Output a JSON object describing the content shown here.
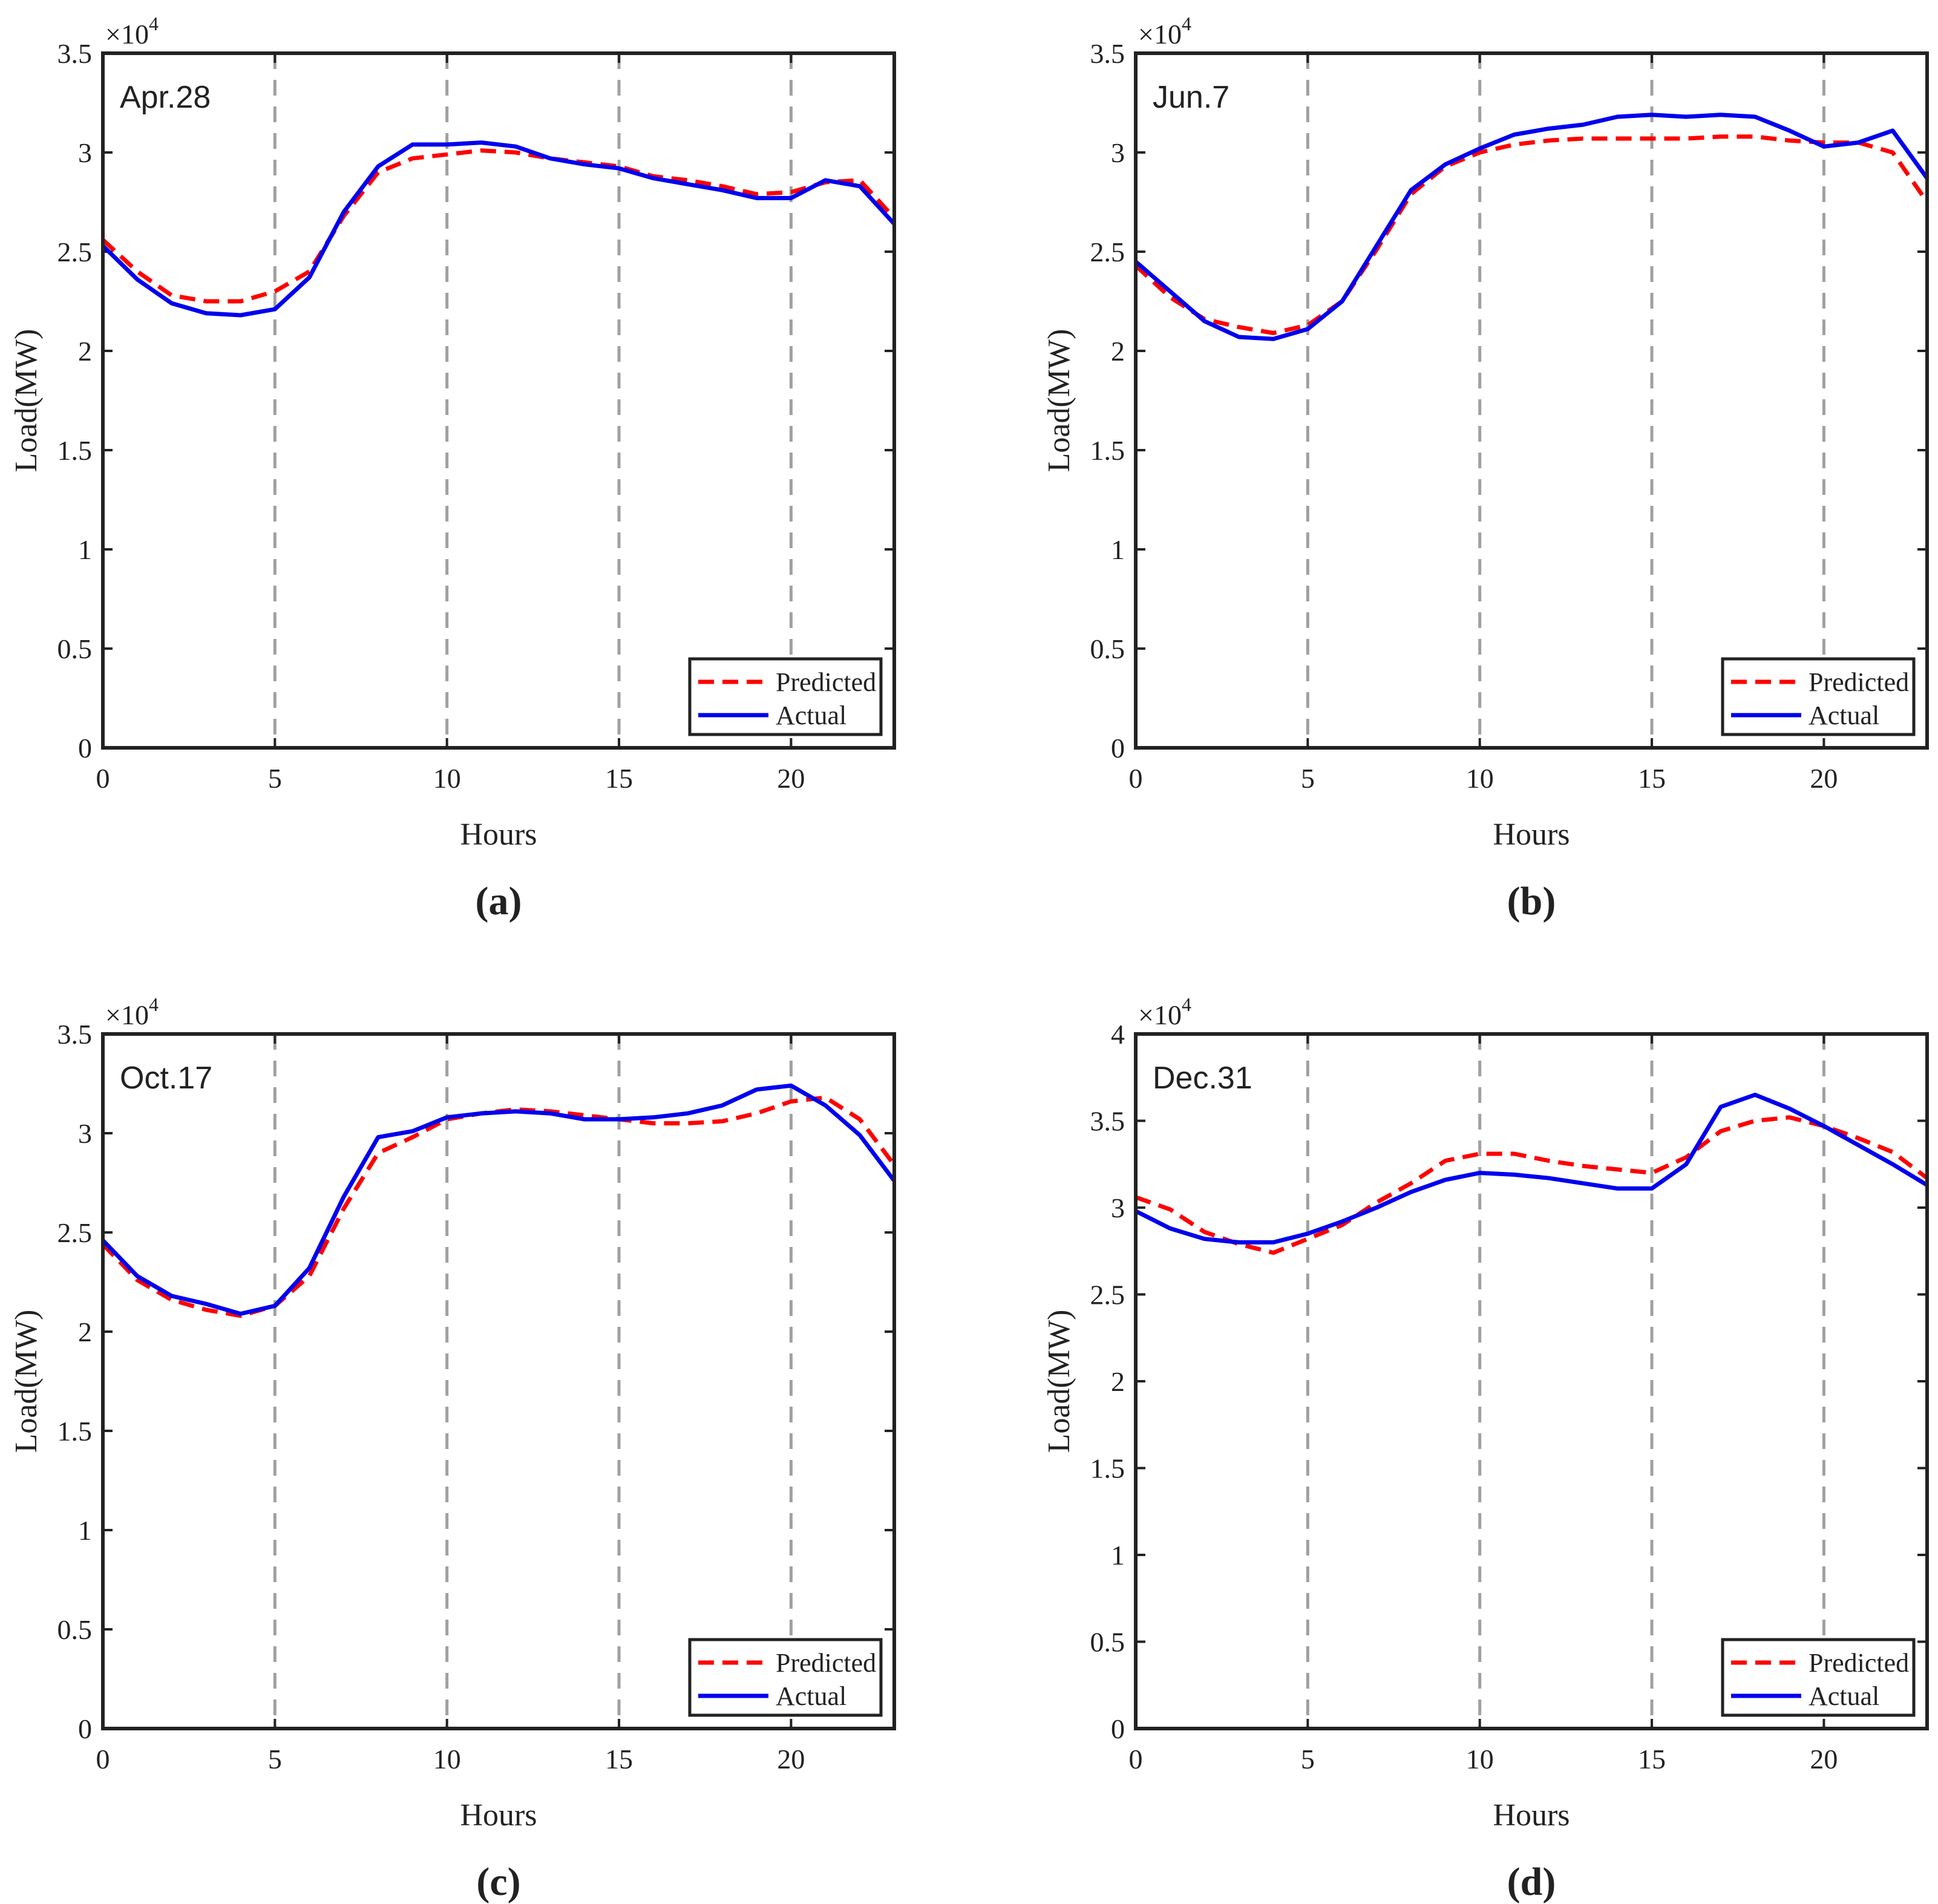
{
  "figure": {
    "panels": [
      "a",
      "b",
      "c",
      "d"
    ]
  },
  "colors": {
    "predicted": "#ff0000",
    "actual": "#0000ee",
    "grid": "#a0a0a0",
    "axis": "#222222"
  },
  "chart_data": [
    {
      "type": "line",
      "panel_label": "a",
      "caption": "(a)",
      "annotation": "Apr.28",
      "title": "",
      "xlabel": "Hours",
      "ylabel": "Load(MW)",
      "y_multiplier_label": "×10",
      "y_multiplier_exp": "4",
      "xlim": [
        0,
        23
      ],
      "ylim": [
        0,
        3.5
      ],
      "xticks": [
        0,
        5,
        10,
        15,
        20
      ],
      "yticks": [
        0,
        0.5,
        1,
        1.5,
        2,
        2.5,
        3,
        3.5
      ],
      "ytick_labels": [
        "0",
        "0.5",
        "1",
        "1.5",
        "2",
        "2.5",
        "3",
        "3.5"
      ],
      "vlines": [
        5,
        10,
        15,
        20
      ],
      "legend": {
        "position": "bottom-right",
        "entries": [
          "Predicted",
          "Actual"
        ]
      },
      "x": [
        0,
        1,
        2,
        3,
        4,
        5,
        6,
        7,
        8,
        9,
        10,
        11,
        12,
        13,
        14,
        15,
        16,
        17,
        18,
        19,
        20,
        21,
        22,
        23
      ],
      "series": [
        {
          "name": "Predicted",
          "style": "dashed",
          "values": [
            2.56,
            2.4,
            2.28,
            2.25,
            2.25,
            2.3,
            2.4,
            2.68,
            2.9,
            2.97,
            2.99,
            3.01,
            3.0,
            2.97,
            2.95,
            2.93,
            2.88,
            2.86,
            2.83,
            2.79,
            2.8,
            2.85,
            2.86,
            2.67
          ]
        },
        {
          "name": "Actual",
          "style": "solid",
          "values": [
            2.53,
            2.36,
            2.24,
            2.19,
            2.18,
            2.21,
            2.37,
            2.7,
            2.93,
            3.04,
            3.04,
            3.05,
            3.03,
            2.97,
            2.94,
            2.92,
            2.87,
            2.84,
            2.81,
            2.77,
            2.77,
            2.86,
            2.83,
            2.64
          ]
        }
      ]
    },
    {
      "type": "line",
      "panel_label": "b",
      "caption": "(b)",
      "annotation": "Jun.7",
      "title": "",
      "xlabel": "Hours",
      "ylabel": "Load(MW)",
      "y_multiplier_label": "×10",
      "y_multiplier_exp": "4",
      "xlim": [
        0,
        23
      ],
      "ylim": [
        0,
        3.5
      ],
      "xticks": [
        0,
        5,
        10,
        15,
        20
      ],
      "yticks": [
        0,
        0.5,
        1,
        1.5,
        2,
        2.5,
        3,
        3.5
      ],
      "ytick_labels": [
        "0",
        "0.5",
        "1",
        "1.5",
        "2",
        "2.5",
        "3",
        "3.5"
      ],
      "vlines": [
        5,
        10,
        15,
        20
      ],
      "legend": {
        "position": "bottom-right",
        "entries": [
          "Predicted",
          "Actual"
        ]
      },
      "x": [
        0,
        1,
        2,
        3,
        4,
        5,
        6,
        7,
        8,
        9,
        10,
        11,
        12,
        13,
        14,
        15,
        16,
        17,
        18,
        19,
        20,
        21,
        22,
        23
      ],
      "series": [
        {
          "name": "Predicted",
          "style": "dashed",
          "values": [
            2.43,
            2.27,
            2.16,
            2.12,
            2.09,
            2.13,
            2.25,
            2.51,
            2.79,
            2.93,
            3.0,
            3.04,
            3.06,
            3.07,
            3.07,
            3.07,
            3.07,
            3.08,
            3.08,
            3.06,
            3.05,
            3.05,
            3.0,
            2.75
          ]
        },
        {
          "name": "Actual",
          "style": "solid",
          "values": [
            2.45,
            2.3,
            2.15,
            2.07,
            2.06,
            2.11,
            2.25,
            2.53,
            2.81,
            2.94,
            3.02,
            3.09,
            3.12,
            3.14,
            3.18,
            3.19,
            3.18,
            3.19,
            3.18,
            3.11,
            3.03,
            3.05,
            3.11,
            2.87
          ]
        }
      ]
    },
    {
      "type": "line",
      "panel_label": "c",
      "caption": "(c)",
      "annotation": "Oct.17",
      "title": "",
      "xlabel": "Hours",
      "ylabel": "Load(MW)",
      "y_multiplier_label": "×10",
      "y_multiplier_exp": "4",
      "xlim": [
        0,
        23
      ],
      "ylim": [
        0,
        3.5
      ],
      "xticks": [
        0,
        5,
        10,
        15,
        20
      ],
      "yticks": [
        0,
        0.5,
        1,
        1.5,
        2,
        2.5,
        3,
        3.5
      ],
      "ytick_labels": [
        "0",
        "0.5",
        "1",
        "1.5",
        "2",
        "2.5",
        "3",
        "3.5"
      ],
      "vlines": [
        5,
        10,
        15,
        20
      ],
      "legend": {
        "position": "bottom-right",
        "entries": [
          "Predicted",
          "Actual"
        ]
      },
      "x": [
        0,
        1,
        2,
        3,
        4,
        5,
        6,
        7,
        8,
        9,
        10,
        11,
        12,
        13,
        14,
        15,
        16,
        17,
        18,
        19,
        20,
        21,
        22,
        23
      ],
      "series": [
        {
          "name": "Predicted",
          "style": "dashed",
          "values": [
            2.44,
            2.26,
            2.16,
            2.11,
            2.08,
            2.13,
            2.28,
            2.62,
            2.9,
            2.98,
            3.07,
            3.1,
            3.12,
            3.11,
            3.09,
            3.07,
            3.05,
            3.05,
            3.06,
            3.1,
            3.16,
            3.18,
            3.07,
            2.84
          ]
        },
        {
          "name": "Actual",
          "style": "solid",
          "values": [
            2.46,
            2.28,
            2.18,
            2.14,
            2.09,
            2.13,
            2.32,
            2.68,
            2.98,
            3.01,
            3.08,
            3.1,
            3.11,
            3.1,
            3.07,
            3.07,
            3.08,
            3.1,
            3.14,
            3.22,
            3.24,
            3.14,
            2.99,
            2.76
          ]
        }
      ]
    },
    {
      "type": "line",
      "panel_label": "d",
      "caption": "(d)",
      "annotation": "Dec.31",
      "title": "",
      "xlabel": "Hours",
      "ylabel": "Load(MW)",
      "y_multiplier_label": "×10",
      "y_multiplier_exp": "4",
      "xlim": [
        0,
        23
      ],
      "ylim": [
        0,
        4
      ],
      "xticks": [
        0,
        5,
        10,
        15,
        20
      ],
      "yticks": [
        0,
        0.5,
        1,
        1.5,
        2,
        2.5,
        3,
        3.5,
        4
      ],
      "ytick_labels": [
        "0",
        "0.5",
        "1",
        "1.5",
        "2",
        "2.5",
        "3",
        "3.5",
        "4"
      ],
      "vlines": [
        5,
        10,
        15,
        20
      ],
      "legend": {
        "position": "bottom-right",
        "entries": [
          "Predicted",
          "Actual"
        ]
      },
      "x": [
        0,
        1,
        2,
        3,
        4,
        5,
        6,
        7,
        8,
        9,
        10,
        11,
        12,
        13,
        14,
        15,
        16,
        17,
        18,
        19,
        20,
        21,
        22,
        23
      ],
      "series": [
        {
          "name": "Predicted",
          "style": "dashed",
          "values": [
            3.06,
            2.99,
            2.86,
            2.79,
            2.74,
            2.82,
            2.9,
            3.03,
            3.14,
            3.27,
            3.31,
            3.31,
            3.27,
            3.24,
            3.22,
            3.2,
            3.29,
            3.44,
            3.5,
            3.52,
            3.47,
            3.4,
            3.32,
            3.17
          ]
        },
        {
          "name": "Actual",
          "style": "solid",
          "values": [
            2.98,
            2.88,
            2.82,
            2.8,
            2.8,
            2.85,
            2.92,
            3.0,
            3.09,
            3.16,
            3.2,
            3.19,
            3.17,
            3.14,
            3.11,
            3.11,
            3.25,
            3.58,
            3.65,
            3.57,
            3.47,
            3.36,
            3.25,
            3.13
          ]
        }
      ]
    }
  ]
}
